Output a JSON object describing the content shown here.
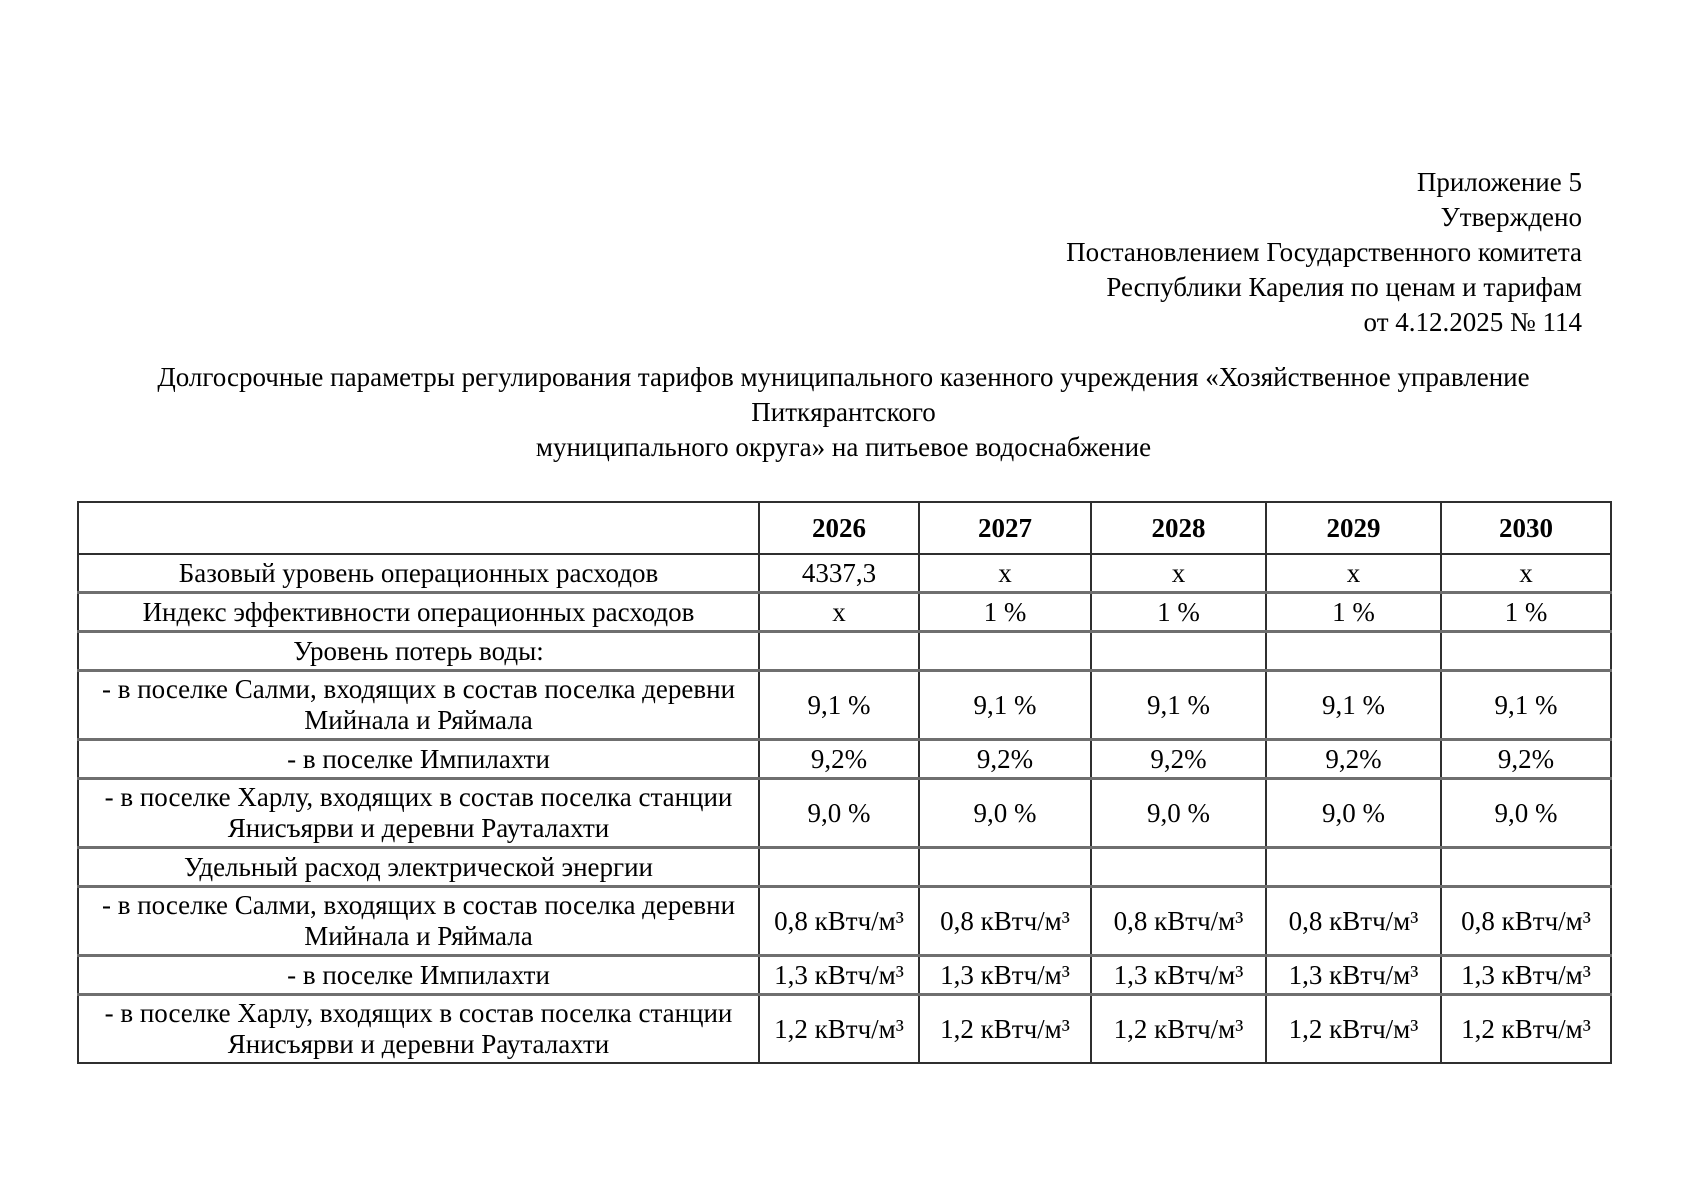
{
  "approval_block": {
    "lines": [
      "Приложение 5",
      "Утверждено",
      "Постановлением Государственного комитета",
      "Республики Карелия по ценам и тарифам",
      "от 4.12.2025 № 114"
    ]
  },
  "title": {
    "lines": [
      "Долгосрочные параметры регулирования тарифов муниципального казенного учреждения «Хозяйственное управление Питкярантского",
      "муниципального округа» на питьевое водоснабжение"
    ]
  },
  "table": {
    "columns": [
      "",
      "2026",
      "2027",
      "2028",
      "2029",
      "2030"
    ],
    "rows": [
      {
        "label": "Базовый уровень операционных расходов",
        "values": [
          "4337,3",
          "х",
          "х",
          "х",
          "х"
        ]
      },
      {
        "label": "Индекс эффективности операционных расходов",
        "values": [
          "х",
          "1 %",
          "1 %",
          "1 %",
          "1 %"
        ]
      },
      {
        "label": "Уровень потерь воды:",
        "values": [
          "",
          "",
          "",
          "",
          ""
        ]
      },
      {
        "label": "- в поселке Салми, входящих в состав поселка деревни Мийнала и Ряймала",
        "values": [
          "9,1 %",
          "9,1 %",
          "9,1 %",
          "9,1 %",
          "9,1 %"
        ]
      },
      {
        "label": "- в поселке Импилахти",
        "values": [
          "9,2%",
          "9,2%",
          "9,2%",
          "9,2%",
          "9,2%"
        ]
      },
      {
        "label": "- в поселке Харлу, входящих в состав поселка станции Янисъярви и деревни Рауталахти",
        "values": [
          "9,0 %",
          "9,0 %",
          "9,0 %",
          "9,0 %",
          "9,0 %"
        ]
      },
      {
        "label": "Удельный расход электрической энергии",
        "values": [
          "",
          "",
          "",
          "",
          ""
        ]
      },
      {
        "label": "- в поселке Салми, входящих в состав поселка деревни Мийнала и Ряймала",
        "values": [
          "0,8 кВтч/м³",
          "0,8 кВтч/м³",
          "0,8 кВтч/м³",
          "0,8 кВтч/м³",
          "0,8 кВтч/м³"
        ]
      },
      {
        "label": "- в поселке Импилахти",
        "values": [
          "1,3 кВтч/м³",
          "1,3 кВтч/м³",
          "1,3 кВтч/м³",
          "1,3 кВтч/м³",
          "1,3 кВтч/м³"
        ]
      },
      {
        "label": "- в поселке Харлу, входящих в состав поселка станции Янисъярви и деревни Рауталахти",
        "values": [
          "1,2 кВтч/м³",
          "1,2 кВтч/м³",
          "1,2 кВтч/м³",
          "1,2 кВтч/м³",
          "1,2 кВтч/м³"
        ]
      }
    ]
  }
}
